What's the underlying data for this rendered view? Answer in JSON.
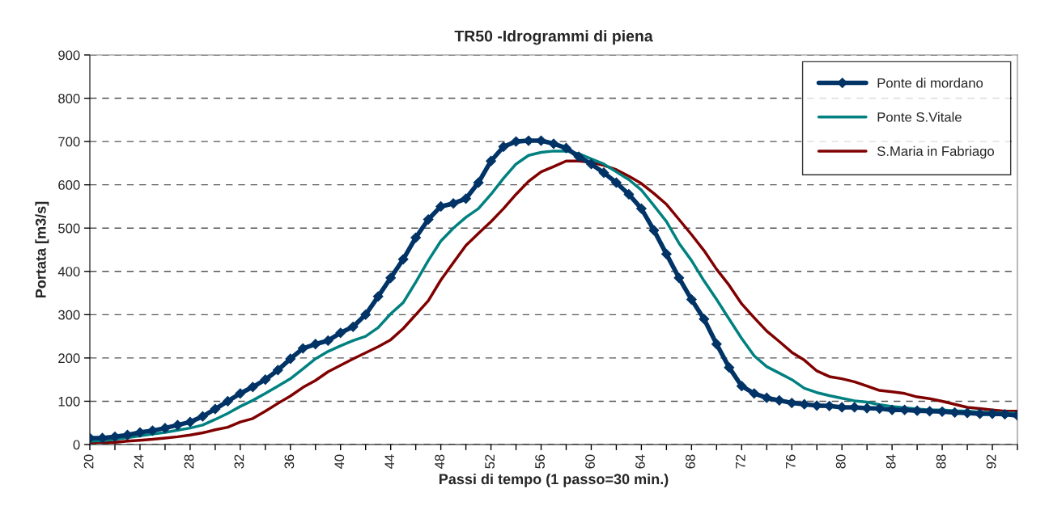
{
  "chart_data": {
    "type": "line",
    "title": "TR50 -Idrogrammi di piena",
    "xlabel": "Passi di tempo (1 passo=30 min.)",
    "ylabel": "Portata [m3/s]",
    "x": [
      20,
      21,
      22,
      23,
      24,
      25,
      26,
      27,
      28,
      29,
      30,
      31,
      32,
      33,
      34,
      35,
      36,
      37,
      38,
      39,
      40,
      41,
      42,
      43,
      44,
      45,
      46,
      47,
      48,
      49,
      50,
      51,
      52,
      53,
      54,
      55,
      56,
      57,
      58,
      59,
      60,
      61,
      62,
      63,
      64,
      65,
      66,
      67,
      68,
      69,
      70,
      71,
      72,
      73,
      74,
      75,
      76,
      77,
      78,
      79,
      80,
      81,
      82,
      83,
      84,
      85,
      86,
      87,
      88,
      89,
      90,
      91,
      92,
      93,
      94
    ],
    "series": [
      {
        "name": "Ponte di mordano",
        "color": "#003366",
        "marker": "diamond",
        "values": [
          15,
          15,
          18,
          22,
          28,
          32,
          38,
          45,
          52,
          65,
          82,
          100,
          118,
          133,
          150,
          172,
          198,
          222,
          232,
          240,
          258,
          272,
          300,
          342,
          385,
          428,
          478,
          520,
          550,
          557,
          568,
          605,
          655,
          688,
          700,
          702,
          702,
          695,
          685,
          665,
          648,
          628,
          605,
          578,
          545,
          495,
          440,
          385,
          335,
          290,
          232,
          178,
          135,
          118,
          108,
          102,
          96,
          93,
          90,
          89,
          86,
          86,
          84,
          83,
          80,
          80,
          78,
          77,
          76,
          74,
          73,
          71,
          71,
          70,
          67
        ]
      },
      {
        "name": "Ponte S.Vitale",
        "color": "#008080",
        "values": [
          8,
          9,
          12,
          16,
          20,
          24,
          28,
          33,
          38,
          45,
          58,
          72,
          88,
          102,
          118,
          135,
          152,
          175,
          198,
          215,
          228,
          240,
          250,
          270,
          302,
          328,
          375,
          425,
          470,
          500,
          525,
          545,
          578,
          615,
          648,
          668,
          675,
          678,
          678,
          672,
          660,
          648,
          630,
          612,
          588,
          552,
          515,
          465,
          425,
          378,
          335,
          290,
          245,
          205,
          180,
          165,
          150,
          130,
          120,
          113,
          107,
          101,
          98,
          92,
          88,
          85,
          82,
          80,
          80,
          78,
          77,
          75,
          74,
          74,
          72
        ]
      },
      {
        "name": "S.Maria in Fabriago",
        "color": "#800000",
        "values": [
          5,
          5,
          5,
          8,
          10,
          12,
          15,
          18,
          22,
          27,
          34,
          40,
          52,
          60,
          77,
          95,
          112,
          132,
          148,
          168,
          183,
          198,
          212,
          226,
          242,
          268,
          300,
          332,
          380,
          420,
          460,
          488,
          515,
          545,
          578,
          608,
          630,
          642,
          655,
          655,
          652,
          645,
          635,
          620,
          603,
          580,
          555,
          520,
          485,
          448,
          405,
          368,
          325,
          293,
          262,
          238,
          213,
          195,
          170,
          157,
          152,
          145,
          135,
          125,
          122,
          118,
          110,
          106,
          100,
          93,
          86,
          83,
          80,
          77,
          77
        ]
      }
    ],
    "xlim": [
      20,
      94
    ],
    "xticks": [
      20,
      {
        "value": 22,
        "label": null
      },
      24,
      {
        "value": 26,
        "label": null
      },
      28,
      {
        "value": 30,
        "label": null
      },
      32,
      {
        "value": 34,
        "label": null
      },
      36,
      {
        "value": 38,
        "label": null
      },
      40,
      {
        "value": 42,
        "label": null
      },
      44,
      {
        "value": 46,
        "label": null
      },
      48,
      {
        "value": 50,
        "label": null
      },
      52,
      {
        "value": 54,
        "label": null
      },
      56,
      {
        "value": 58,
        "label": null
      },
      60,
      {
        "value": 62,
        "label": null
      },
      64,
      {
        "value": 66,
        "label": null
      },
      68,
      {
        "value": 70,
        "label": null
      },
      72,
      {
        "value": 74,
        "label": null
      },
      76,
      {
        "value": 78,
        "label": null
      },
      80,
      {
        "value": 82,
        "label": null
      },
      84,
      {
        "value": 86,
        "label": null
      },
      88,
      {
        "value": 90,
        "label": null
      },
      92,
      {
        "value": 94,
        "label": null
      }
    ],
    "ylim": [
      0,
      900
    ],
    "yticks": [
      0,
      100,
      200,
      300,
      400,
      500,
      600,
      700,
      800,
      900
    ],
    "grid": "y",
    "legend": "top right",
    "line_style": "solid"
  }
}
